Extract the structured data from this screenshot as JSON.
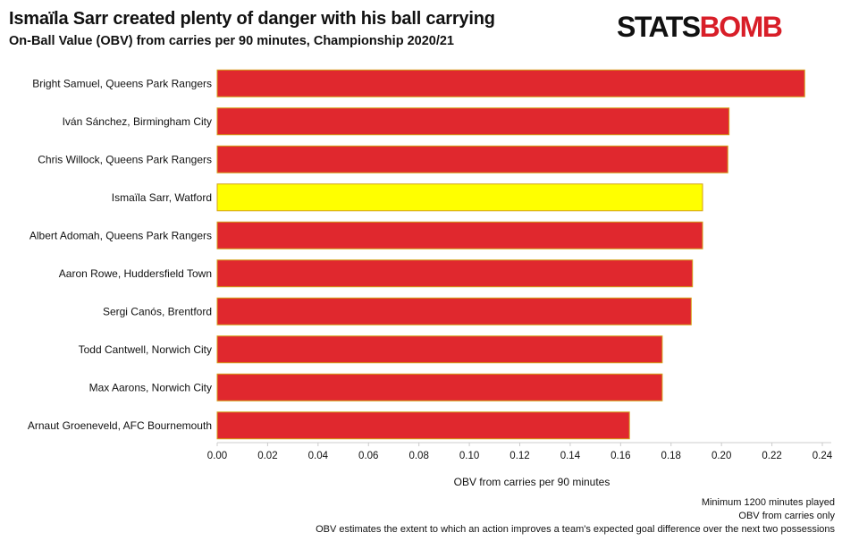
{
  "header": {
    "title": "Ismaïla Sarr created plenty of danger with his ball carrying",
    "subtitle": "On-Ball Value (OBV) from carries per 90 minutes, Championship 2020/21"
  },
  "logo": {
    "part1": "STATS",
    "part2": "BOMB"
  },
  "footer": {
    "notes": [
      "Minimum 1200 minutes played",
      "OBV from carries only",
      "OBV estimates the extent to which an action improves a team's expected goal difference over the next two possessions"
    ]
  },
  "colors": {
    "bar": "#e0282e",
    "highlight": "#ffff00",
    "bar_border": "#d4a017"
  },
  "chart_data": {
    "type": "bar",
    "orientation": "horizontal",
    "title": "Ismaïla Sarr created plenty of danger with his ball carrying",
    "subtitle": "On-Ball Value (OBV) from carries per 90 minutes, Championship 2020/21",
    "xlabel": "OBV from carries per 90 minutes",
    "ylabel": "",
    "xlim": [
      0,
      0.24
    ],
    "xticks": [
      "0.00",
      "0.02",
      "0.04",
      "0.06",
      "0.08",
      "0.10",
      "0.12",
      "0.14",
      "0.16",
      "0.18",
      "0.20",
      "0.22",
      "0.24"
    ],
    "grid": false,
    "categories": [
      "Bright Samuel, Queens Park Rangers",
      "Iván Sánchez, Birmingham City",
      "Chris Willock, Queens Park Rangers",
      "Ismaïla Sarr, Watford",
      "Albert Adomah, Queens Park Rangers",
      "Aaron Rowe, Huddersfield Town",
      "Sergi Canós, Brentford",
      "Todd Cantwell, Norwich City",
      "Max Aarons, Norwich City",
      "Arnaut Groeneveld, AFC Bournemouth"
    ],
    "values": [
      0.233,
      0.203,
      0.2025,
      0.1925,
      0.1925,
      0.1885,
      0.188,
      0.1765,
      0.1765,
      0.1635
    ],
    "highlight": "Ismaïla Sarr, Watford"
  }
}
